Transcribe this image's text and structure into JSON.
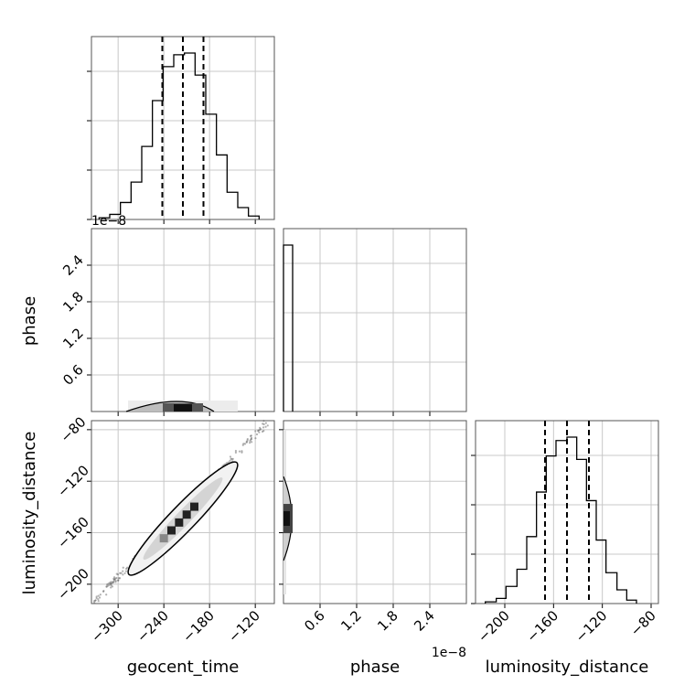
{
  "chart_data": {
    "type": "corner",
    "parameters": [
      "geocent_time",
      "phase",
      "luminosity_distance"
    ],
    "grid": true,
    "panels": {
      "geocent_time_hist": {
        "type": "step-histogram",
        "xlim": [
          -335,
          -95
        ],
        "bin_edges": [
          -325,
          -311,
          -297,
          -283,
          -269,
          -255,
          -241,
          -227,
          -213,
          -199,
          -185,
          -171,
          -157,
          -143,
          -129,
          -115
        ],
        "heights": [
          1,
          3,
          10,
          22,
          43,
          70,
          90,
          97,
          98,
          85,
          62,
          38,
          16,
          7,
          2
        ],
        "quantiles": [
          -242,
          -215,
          -188
        ],
        "y_ticks_shown_without_labels": 4
      },
      "phase_hist": {
        "type": "step-histogram",
        "xlim": [
          0,
          3.0
        ],
        "bin_edges": [
          0,
          0.15
        ],
        "heights": [
          1.0
        ],
        "offset_text": "1e−8"
      },
      "luminosity_distance_hist": {
        "type": "step-histogram",
        "xlim": [
          -224,
          -74
        ],
        "bin_edges": [
          -216,
          -207,
          -199,
          -190,
          -182,
          -174,
          -166,
          -158,
          -149,
          -141,
          -133,
          -125,
          -117,
          -108,
          -100,
          -92
        ],
        "heights": [
          1,
          3,
          10,
          20,
          39,
          65,
          86,
          95,
          97,
          84,
          60,
          37,
          18,
          8,
          2
        ],
        "quantiles": [
          -167,
          -149,
          -131
        ]
      },
      "phase_vs_geocent_time": {
        "type": "2d-density-contour",
        "xlim": [
          -335,
          -95
        ],
        "ylim": [
          0,
          3.0
        ],
        "yticks": [
          0.6,
          1.2,
          1.8,
          2.4
        ],
        "ytick_labels": [
          "0.6",
          "1.2",
          "1.8",
          "2.4"
        ],
        "ylabel": "phase",
        "y_offset_text": "1e−8",
        "density_center": [
          -215,
          0.0
        ]
      },
      "luminosity_distance_vs_geocent_time": {
        "type": "2d-density-contour",
        "xlim": [
          -335,
          -95
        ],
        "ylim": [
          -215,
          -73
        ],
        "xticks": [
          -300,
          -240,
          -180,
          -120
        ],
        "xtick_labels": [
          "−300",
          "−240",
          "−180",
          "−120"
        ],
        "yticks": [
          -200,
          -160,
          -120,
          -80
        ],
        "ytick_labels": [
          "−200",
          "−160",
          "−120",
          "−80"
        ],
        "xlabel": "geocent_time",
        "ylabel": "luminosity_distance",
        "correlation": "positive, near-linear"
      },
      "luminosity_distance_vs_phase": {
        "type": "2d-density-contour",
        "xlim": [
          0,
          3.0
        ],
        "ylim": [
          -215,
          -73
        ],
        "xticks": [
          0.6,
          1.2,
          1.8,
          2.4
        ],
        "xtick_labels": [
          "0.6",
          "1.2",
          "1.8",
          "2.4"
        ],
        "xlabel": "phase",
        "x_offset_text": "1e−8",
        "density_center": [
          0.0,
          -149
        ]
      },
      "luminosity_distance_x_axis": {
        "xticks": [
          -200,
          -160,
          -120,
          -80
        ],
        "xtick_labels": [
          "−200",
          "−160",
          "−120",
          "−80"
        ],
        "xlabel": "luminosity_distance"
      }
    }
  }
}
